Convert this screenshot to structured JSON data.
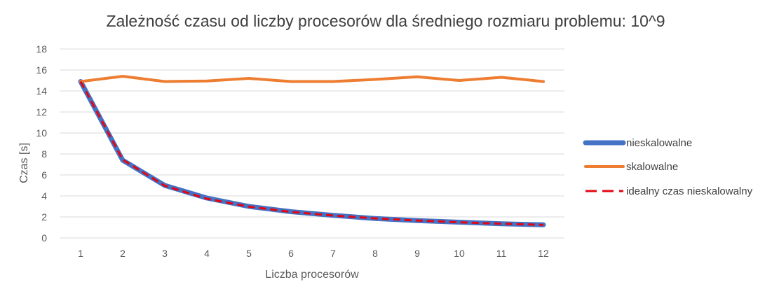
{
  "chart_data": {
    "type": "line",
    "title": "Zależność czasu od liczby procesorów dla średniego rozmiaru problemu: 10^9",
    "xlabel": "Liczba procesorów",
    "ylabel": "Czas [s]",
    "categories": [
      "1",
      "2",
      "3",
      "4",
      "5",
      "6",
      "7",
      "8",
      "9",
      "10",
      "11",
      "12"
    ],
    "ylim": [
      0,
      18
    ],
    "yticks": [
      "0",
      "2",
      "4",
      "6",
      "8",
      "10",
      "12",
      "14",
      "16",
      "18"
    ],
    "grid": true,
    "legend_position": "right",
    "series": [
      {
        "name": "nieskalowalne",
        "color": "#4472C4",
        "style": "solid",
        "values": [
          14.9,
          7.4,
          5.0,
          3.8,
          3.0,
          2.5,
          2.15,
          1.85,
          1.65,
          1.5,
          1.35,
          1.25
        ]
      },
      {
        "name": "skalowalne",
        "color": "#ED7D31",
        "style": "solid",
        "values": [
          14.9,
          15.4,
          14.9,
          14.95,
          15.2,
          14.9,
          14.9,
          15.1,
          15.35,
          15.0,
          15.3,
          14.9
        ]
      },
      {
        "name": "idealny czas nieskalowalny",
        "color": "#E30613",
        "style": "dashed",
        "values": [
          14.9,
          7.45,
          4.97,
          3.73,
          2.98,
          2.48,
          2.13,
          1.86,
          1.66,
          1.49,
          1.35,
          1.24
        ]
      }
    ]
  }
}
